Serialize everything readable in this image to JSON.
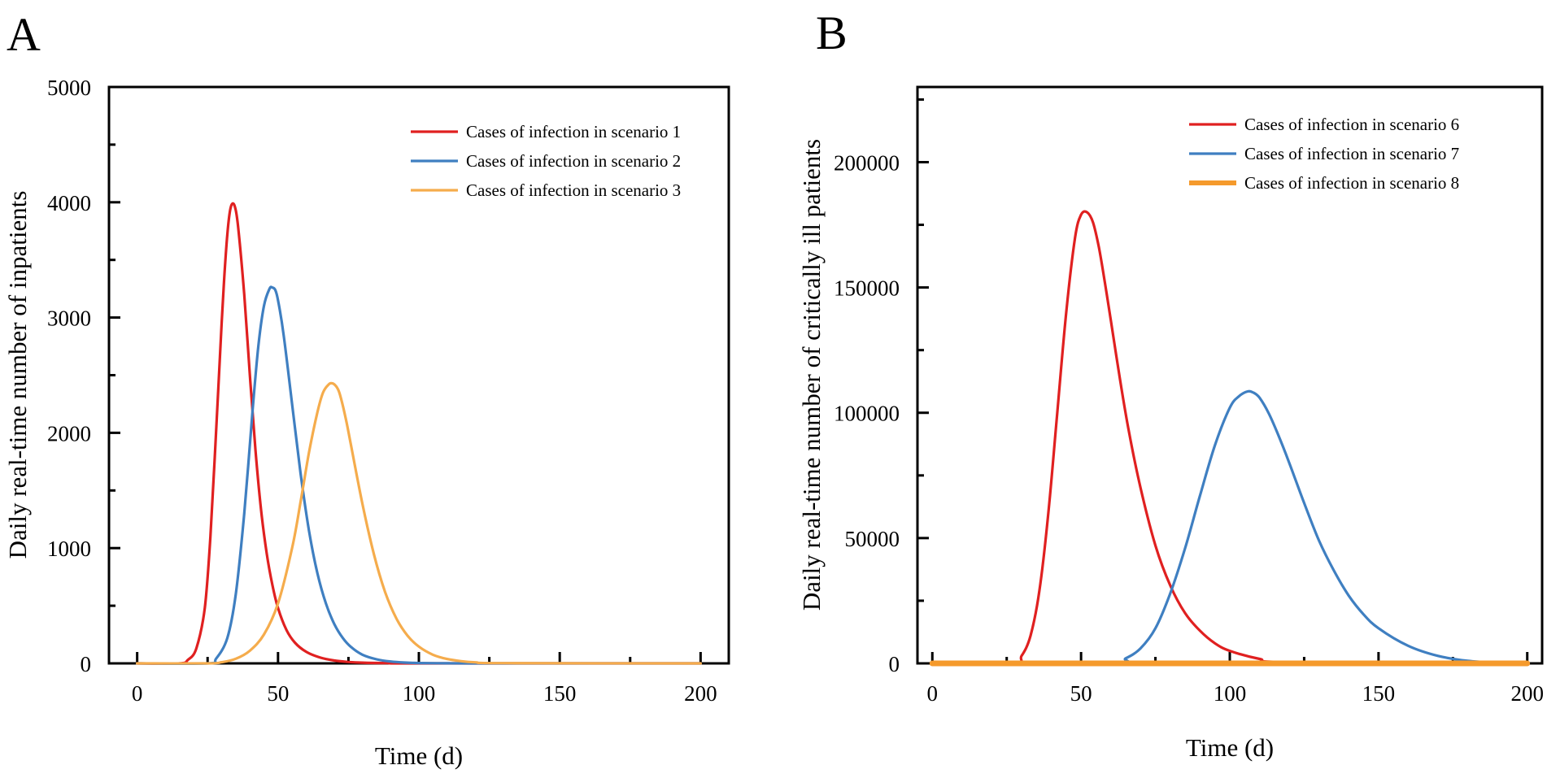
{
  "chart_data": [
    {
      "type": "line",
      "panel_label": "A",
      "title": "",
      "xlabel": "Time (d)",
      "ylabel": "Daily real-time number of inpatients",
      "xlim": [
        -10,
        210
      ],
      "ylim": [
        0,
        5000
      ],
      "xticks": [
        0,
        50,
        100,
        150,
        200
      ],
      "yticks": [
        0,
        1000,
        2000,
        3000,
        4000,
        5000
      ],
      "xtick_labels": [
        "0",
        "50",
        "100",
        "150",
        "200"
      ],
      "ytick_labels": [
        "0",
        "1000",
        "2000",
        "3000",
        "4000",
        "5000"
      ],
      "grid": false,
      "legend_position": "top-right",
      "series": [
        {
          "name": "Cases of infection in scenario 1",
          "color": "#e02020",
          "x": [
            0,
            15,
            18,
            21,
            24,
            26,
            28,
            30,
            31,
            32,
            33,
            34,
            35,
            36,
            38,
            40,
            42,
            44,
            46,
            48,
            50,
            53,
            56,
            60,
            65,
            70,
            75,
            80,
            90,
            100,
            200
          ],
          "y": [
            0,
            0,
            30,
            130,
            480,
            1100,
            2000,
            2950,
            3380,
            3720,
            3930,
            3990,
            3930,
            3750,
            3200,
            2500,
            1850,
            1330,
            950,
            680,
            480,
            290,
            180,
            100,
            50,
            25,
            12,
            6,
            2,
            0,
            0
          ]
        },
        {
          "name": "Cases of infection in scenario 2",
          "color": "#3f7fc1",
          "x": [
            0,
            25,
            28,
            32,
            35,
            38,
            41,
            43,
            45,
            47,
            48,
            49,
            50,
            52,
            55,
            58,
            61,
            64,
            67,
            70,
            73,
            76,
            80,
            85,
            90,
            95,
            100,
            110,
            120,
            200
          ],
          "y": [
            0,
            0,
            40,
            220,
            600,
            1300,
            2200,
            2750,
            3100,
            3250,
            3260,
            3240,
            3150,
            2850,
            2250,
            1650,
            1150,
            780,
            520,
            340,
            220,
            140,
            75,
            35,
            16,
            7,
            3,
            1,
            0,
            0
          ]
        },
        {
          "name": "Cases of infection in scenario 3",
          "color": "#f5ac4c",
          "x": [
            0,
            25,
            30,
            35,
            40,
            45,
            50,
            55,
            58,
            61,
            64,
            66,
            68,
            69,
            70,
            71,
            72,
            74,
            76,
            80,
            84,
            88,
            92,
            96,
            100,
            105,
            110,
            115,
            120,
            130,
            200
          ],
          "y": [
            0,
            0,
            10,
            40,
            110,
            250,
            520,
            1000,
            1400,
            1830,
            2180,
            2350,
            2420,
            2430,
            2420,
            2390,
            2330,
            2130,
            1880,
            1380,
            950,
            620,
            390,
            240,
            145,
            75,
            38,
            19,
            9,
            2,
            0
          ]
        }
      ]
    },
    {
      "type": "line",
      "panel_label": "B",
      "title": "",
      "xlabel": "Time (d)",
      "ylabel": "Daily real-time number of critically ill patients",
      "xlim": [
        -5,
        205
      ],
      "ylim": [
        0,
        230000
      ],
      "xticks": [
        0,
        50,
        100,
        150,
        200
      ],
      "yticks": [
        0,
        50000,
        100000,
        150000,
        200000
      ],
      "xtick_labels": [
        "0",
        "50",
        "100",
        "150",
        "200"
      ],
      "ytick_labels": [
        "0",
        "50000",
        "100000",
        "150000",
        "200000"
      ],
      "grid": false,
      "legend_position": "top-right",
      "series": [
        {
          "name": "Cases of infection in scenario 6",
          "color": "#e02020",
          "x": [
            0,
            27,
            30,
            33,
            36,
            39,
            42,
            45,
            48,
            50,
            52,
            54,
            56,
            58,
            60,
            63,
            66,
            70,
            75,
            80,
            85,
            90,
            95,
            100,
            110,
            120,
            200
          ],
          "y": [
            0,
            0,
            3000,
            11000,
            29000,
            60000,
            100000,
            140000,
            170000,
            179000,
            180000,
            176000,
            166000,
            152000,
            137000,
            114000,
            93000,
            70000,
            47000,
            31000,
            20000,
            13000,
            8000,
            5000,
            1800,
            500,
            0
          ]
        },
        {
          "name": "Cases of infection in scenario 7",
          "color": "#3f7fc1",
          "x": [
            0,
            60,
            65,
            70,
            75,
            80,
            85,
            90,
            95,
            100,
            103,
            106,
            108,
            110,
            113,
            116,
            120,
            125,
            130,
            135,
            140,
            145,
            150,
            160,
            170,
            180,
            190,
            200
          ],
          "y": [
            0,
            0,
            2000,
            6000,
            14000,
            28000,
            46000,
            67000,
            87000,
            102000,
            106500,
            108500,
            108000,
            106000,
            100000,
            92000,
            80000,
            64000,
            49000,
            37000,
            27000,
            19500,
            14000,
            7000,
            3000,
            1000,
            300,
            0
          ]
        },
        {
          "name": "Cases of infection in scenario 8",
          "color": "#f59a2c",
          "x": [
            0,
            200
          ],
          "y": [
            0,
            0
          ]
        }
      ]
    }
  ]
}
